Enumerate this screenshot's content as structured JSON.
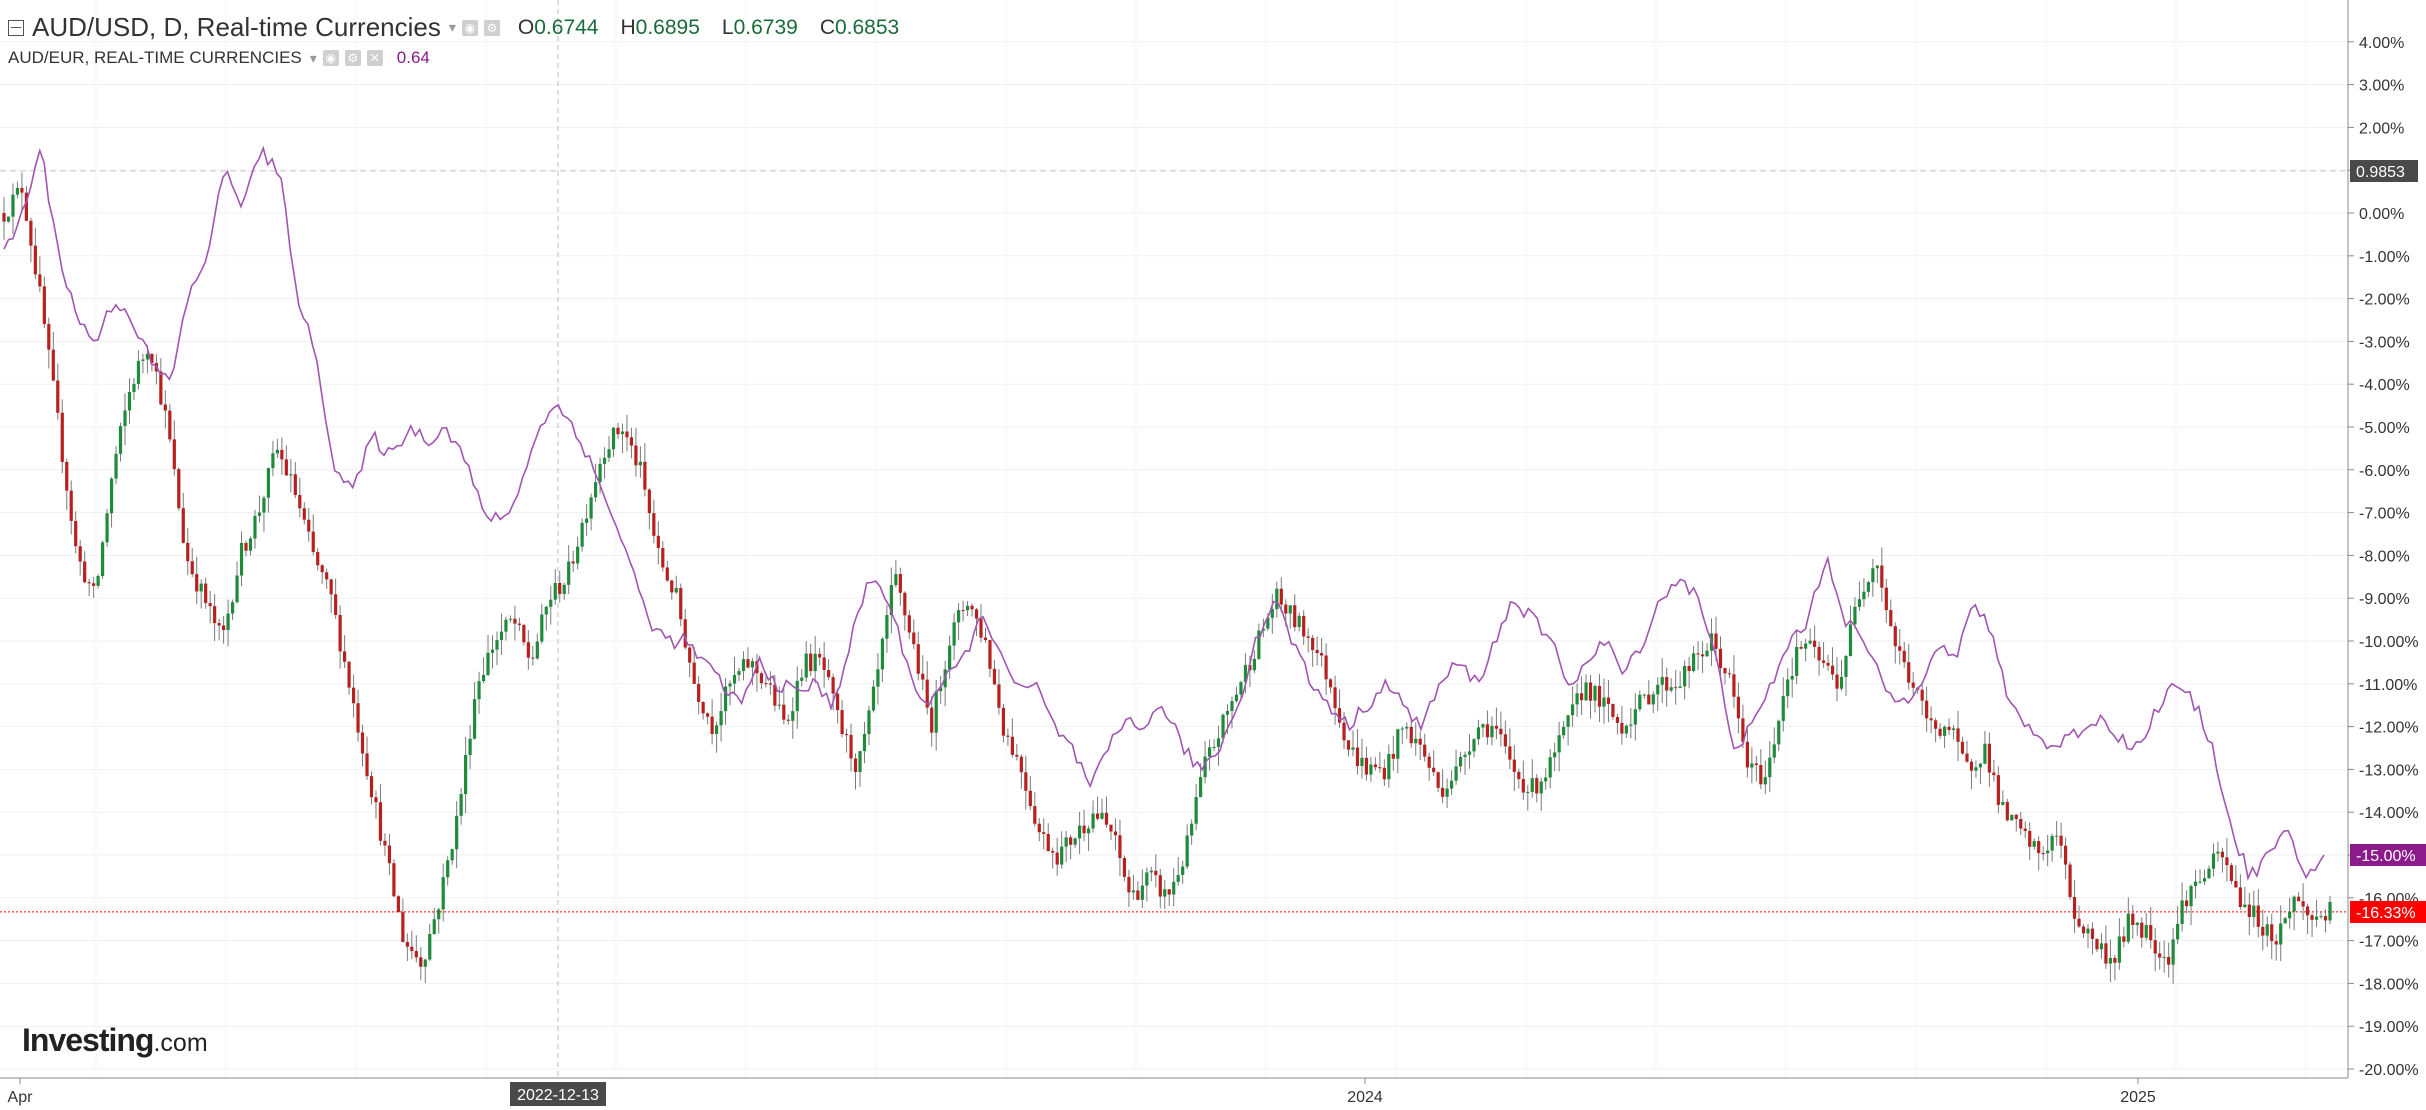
{
  "legend": {
    "main_symbol": "AUD/USD, D, Real-time Currencies",
    "ohlc": [
      {
        "key": "O",
        "value": "0.6744"
      },
      {
        "key": "H",
        "value": "0.6895"
      },
      {
        "key": "L",
        "value": "0.6739"
      },
      {
        "key": "C",
        "value": "0.6853"
      }
    ],
    "compare_symbol": "AUD/EUR, REAL-TIME CURRENCIES",
    "compare_value": "0.64"
  },
  "watermark": {
    "brand": "Investing",
    "suffix": ".com"
  },
  "colors": {
    "up": "#1f8a3a",
    "down": "#b81f1f",
    "compare_line": "#a056b0",
    "compare_badge": "#8b1a8b",
    "last_badge": "#ff0000",
    "crosshair_badge": "#4a4a4a"
  },
  "chart_data": {
    "type": "line",
    "y_axis": {
      "unit": "%",
      "range": [
        -20.3,
        4.6
      ],
      "tick_labels": [
        "4.00%",
        "3.00%",
        "2.00%",
        "1.00%",
        "0.00%",
        "-1.00%",
        "-2.00%",
        "-3.00%",
        "-4.00%",
        "-5.00%",
        "-6.00%",
        "-7.00%",
        "-8.00%",
        "-9.00%",
        "-10.00%",
        "-11.00%",
        "-12.00%",
        "-13.00%",
        "-14.00%",
        "-15.00%",
        "-16.00%",
        "-17.00%",
        "-18.00%",
        "-19.00%",
        "-20.00%"
      ]
    },
    "x_axis": {
      "tick_labels": [
        "Apr",
        "2024",
        "2025"
      ],
      "crosshair_date": "2022-12-13"
    },
    "horizontal_lines": {
      "crosshair_value": "0.9853",
      "last_value": -16.33,
      "last_label": "-16.33%",
      "compare_last": -15.0,
      "compare_label": "-15.00%"
    },
    "series": [
      {
        "name": "AUD/USD",
        "style": "candlestick",
        "points": [
          0,
          0.6,
          -2,
          -5,
          -8,
          -9,
          -6,
          -4,
          -3,
          -5,
          -8,
          -9,
          -10,
          -8,
          -7,
          -5.5,
          -6.5,
          -8,
          -9,
          -11,
          -13,
          -15,
          -17,
          -17.5,
          -16,
          -14,
          -11,
          -10,
          -9.5,
          -10.5,
          -9,
          -8.5,
          -7,
          -5.5,
          -5,
          -6,
          -8,
          -9,
          -11,
          -12,
          -11,
          -10.5,
          -11,
          -12,
          -10.5,
          -10.5,
          -12,
          -13,
          -11,
          -8.5,
          -10,
          -12,
          -10,
          -9,
          -10,
          -12,
          -13,
          -14.5,
          -15,
          -14.5,
          -14,
          -14.5,
          -16,
          -15.5,
          -16,
          -15,
          -13,
          -12,
          -11,
          -10,
          -9,
          -9.5,
          -10,
          -11,
          -12.5,
          -13,
          -13,
          -12,
          -12.5,
          -13.5,
          -13,
          -12,
          -12,
          -13,
          -13.5,
          -13,
          -12,
          -11,
          -11.5,
          -12,
          -11.5,
          -11,
          -11,
          -10.5,
          -10,
          -11,
          -13,
          -13.2,
          -11,
          -10,
          -10.5,
          -11,
          -9,
          -8,
          -10,
          -11,
          -12,
          -12,
          -13,
          -12.5,
          -14,
          -14.5,
          -15,
          -14.5,
          -16.5,
          -17,
          -17.5,
          -16.5,
          -16.8,
          -17.5,
          -16,
          -15.5,
          -15,
          -16,
          -16.5,
          -17,
          -16,
          -16.5,
          -16.33
        ]
      },
      {
        "name": "AUD/EUR",
        "style": "line",
        "points": [
          -1,
          0,
          1.5,
          -1,
          -2.5,
          -3,
          -2,
          -2.5,
          -3.5,
          -4,
          -2,
          -1,
          1,
          0.2,
          1.5,
          0.8,
          -2,
          -3.5,
          -6,
          -6.5,
          -5.2,
          -5.7,
          -5,
          -5.3,
          -5,
          -5.7,
          -7,
          -7.2,
          -6.5,
          -5,
          -4.5,
          -5,
          -6,
          -7,
          -8.2,
          -9.5,
          -10,
          -10,
          -10.5,
          -11,
          -11.5,
          -10.5,
          -11,
          -11.2,
          -11,
          -11.5,
          -10,
          -8.5,
          -9,
          -10.5,
          -11.5,
          -11,
          -10.5,
          -9.5,
          -10,
          -11.2,
          -11,
          -12,
          -12.5,
          -13.5,
          -12.5,
          -11.8,
          -12,
          -11.5,
          -12.5,
          -13,
          -12.5,
          -11.5,
          -10,
          -9,
          -10,
          -11,
          -11.5,
          -12,
          -11.5,
          -11,
          -11.5,
          -12,
          -11,
          -10.5,
          -11,
          -10,
          -9,
          -9.5,
          -10,
          -11,
          -10.5,
          -10,
          -10.8,
          -10,
          -9,
          -8.5,
          -9,
          -10.5,
          -12.5,
          -12,
          -11,
          -10,
          -9.5,
          -8,
          -9.5,
          -10,
          -11,
          -11.5,
          -11,
          -10,
          -10.5,
          -9,
          -10,
          -11.5,
          -12,
          -12.5,
          -12.3,
          -12,
          -11.8,
          -12.3,
          -12.5,
          -11.5,
          -11,
          -11.5,
          -12.5,
          -14.5,
          -15.5,
          -15,
          -14.5,
          -15.5,
          -15
        ]
      }
    ]
  }
}
